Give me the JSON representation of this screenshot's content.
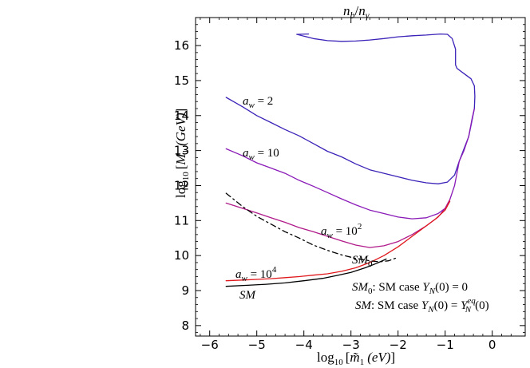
{
  "chart_data": {
    "type": "line",
    "title": "n_b/n_γ",
    "title_parts": {
      "n1": "n",
      "s1": "b",
      "slash": "/",
      "n2": "n",
      "s2": "γ"
    },
    "xlabel": "log10 [m̃1 (eV)]",
    "xlabel_parts": {
      "log": "log",
      "log_sub": "10",
      "open": "[",
      "m": "m̃",
      "m_sub": "1",
      "unit": "(eV)",
      "close": "]"
    },
    "ylabel": "log10 [M1 (GeV)]",
    "ylabel_parts": {
      "log": "log",
      "log_sub": "10",
      "open": "[",
      "m": "M",
      "m_sub": "1",
      "unit": "(GeV)",
      "close": "]"
    },
    "xlim": [
      -6.3,
      0.7
    ],
    "ylim": [
      7.7,
      16.8
    ],
    "x_ticks": [
      {
        "value": -6,
        "label": "−6"
      },
      {
        "value": -5,
        "label": "−5"
      },
      {
        "value": -4,
        "label": "−4"
      },
      {
        "value": -3,
        "label": "−3"
      },
      {
        "value": -2,
        "label": "−2"
      },
      {
        "value": -1,
        "label": "−1"
      },
      {
        "value": 0,
        "label": "0"
      }
    ],
    "y_ticks": [
      {
        "value": 8,
        "label": "8"
      },
      {
        "value": 9,
        "label": "9"
      },
      {
        "value": 10,
        "label": "10"
      },
      {
        "value": 11,
        "label": "11"
      },
      {
        "value": 12,
        "label": "12"
      },
      {
        "value": 13,
        "label": "13"
      },
      {
        "value": 14,
        "label": "14"
      },
      {
        "value": 15,
        "label": "15"
      },
      {
        "value": 16,
        "label": "16"
      }
    ],
    "grid": false,
    "series": [
      {
        "name": "a_w = 2",
        "color": "#3a23b8",
        "style": "solid",
        "x": [
          -5.65,
          -5.3,
          -5.0,
          -4.7,
          -4.4,
          -4.1,
          -3.8,
          -3.5,
          -3.2,
          -2.9,
          -2.6,
          -2.3,
          -2.0,
          -1.7,
          -1.4,
          -1.15,
          -0.95,
          -0.8,
          -0.7,
          -0.6,
          -0.5,
          -0.43,
          -0.38,
          -0.37,
          -0.38,
          -0.45,
          -0.6,
          -0.75,
          -0.78,
          -0.78,
          -0.85,
          -0.95,
          -1.1,
          -1.4,
          -1.7,
          -2.0,
          -2.3,
          -2.6,
          -2.9,
          -3.2,
          -3.5,
          -3.8,
          -4.15,
          -3.9
        ],
        "y": [
          14.52,
          14.25,
          14.0,
          13.8,
          13.6,
          13.42,
          13.2,
          12.98,
          12.82,
          12.62,
          12.45,
          12.35,
          12.25,
          12.15,
          12.08,
          12.05,
          12.1,
          12.3,
          12.7,
          13.05,
          13.4,
          13.85,
          14.2,
          14.55,
          14.85,
          15.05,
          15.2,
          15.35,
          15.45,
          15.9,
          16.2,
          16.32,
          16.33,
          16.3,
          16.28,
          16.25,
          16.2,
          16.16,
          16.13,
          16.12,
          16.14,
          16.2,
          16.32,
          16.33
        ]
      },
      {
        "name": "a_w = 10",
        "color": "#8a1ab8",
        "style": "solid",
        "x": [
          -5.65,
          -5.3,
          -5.0,
          -4.7,
          -4.4,
          -4.1,
          -3.8,
          -3.5,
          -3.2,
          -2.9,
          -2.6,
          -2.3,
          -2.0,
          -1.7,
          -1.4,
          -1.15,
          -1.0,
          -0.9,
          -0.8,
          -0.7,
          -0.6,
          -0.5,
          -0.43,
          -0.38
        ],
        "y": [
          13.05,
          12.85,
          12.65,
          12.5,
          12.35,
          12.15,
          11.98,
          11.8,
          11.62,
          11.45,
          11.3,
          11.2,
          11.1,
          11.05,
          11.08,
          11.2,
          11.35,
          11.6,
          12.0,
          12.7,
          13.0,
          13.4,
          13.9,
          14.2
        ]
      },
      {
        "name": "a_w = 10^2",
        "color": "#b01a8a",
        "style": "solid",
        "x": [
          -5.65,
          -5.3,
          -5.0,
          -4.7,
          -4.4,
          -4.1,
          -3.8,
          -3.5,
          -3.2,
          -2.9,
          -2.6,
          -2.3,
          -2.0,
          -1.7,
          -1.4,
          -1.15,
          -1.0,
          -0.9
        ],
        "y": [
          11.5,
          11.35,
          11.22,
          11.08,
          10.95,
          10.8,
          10.68,
          10.55,
          10.42,
          10.3,
          10.23,
          10.28,
          10.4,
          10.6,
          10.85,
          11.1,
          11.35,
          11.6
        ]
      },
      {
        "name": "a_w = 10^4",
        "color": "#e0181c",
        "style": "solid",
        "x": [
          -5.65,
          -5.3,
          -5.0,
          -4.7,
          -4.4,
          -4.1,
          -3.8,
          -3.5,
          -3.2,
          -2.9,
          -2.6,
          -2.3,
          -2.0,
          -1.7,
          -1.4,
          -1.2,
          -1.0,
          -0.9
        ],
        "y": [
          9.28,
          9.3,
          9.32,
          9.34,
          9.37,
          9.4,
          9.44,
          9.48,
          9.55,
          9.65,
          9.8,
          10.0,
          10.25,
          10.55,
          10.85,
          11.05,
          11.3,
          11.55
        ]
      },
      {
        "name": "SM",
        "color": "#000000",
        "style": "solid",
        "x": [
          -5.65,
          -5.2,
          -4.8,
          -4.4,
          -4.0,
          -3.6,
          -3.3,
          -3.0,
          -2.7,
          -2.45,
          -2.25
        ],
        "y": [
          9.12,
          9.15,
          9.18,
          9.22,
          9.28,
          9.35,
          9.43,
          9.52,
          9.65,
          9.78,
          9.9
        ]
      },
      {
        "name": "SM_0",
        "color": "#000000",
        "style": "dashdot",
        "x": [
          -5.65,
          -5.3,
          -5.0,
          -4.7,
          -4.4,
          -4.1,
          -3.8,
          -3.5,
          -3.2,
          -2.9,
          -2.6,
          -2.4,
          -2.2,
          -2.0
        ],
        "y": [
          11.78,
          11.4,
          11.12,
          10.9,
          10.68,
          10.5,
          10.3,
          10.15,
          10.02,
          9.92,
          9.85,
          9.82,
          9.85,
          9.95
        ]
      }
    ],
    "annotations": {
      "aw2": {
        "a": "a",
        "w": "w",
        "eq": " = 2"
      },
      "aw10": {
        "a": "a",
        "w": "w",
        "eq": " = 10"
      },
      "aw100": {
        "a": "a",
        "w": "w",
        "eq": " = 10",
        "exp": "2"
      },
      "aw10000": {
        "a": "a",
        "w": "w",
        "eq": " = 10",
        "exp": "4"
      },
      "sm": "SM",
      "sm0": {
        "base": "SM",
        "sub": "0"
      },
      "legend_line1": {
        "label": "SM",
        "sub": "0",
        "colon": ":",
        "text": " SM case ",
        "y": "Y",
        "ysub": "N",
        "rest": "(0) = 0"
      },
      "legend_line2": {
        "label": "SM",
        "colon": ":",
        "text": " SM case ",
        "y": "Y",
        "ysub": "N",
        "rest": "(0) = ",
        "y2": "Y",
        "y2sub": "N",
        "y2sup": "eq",
        "rest2": "(0)"
      }
    }
  }
}
